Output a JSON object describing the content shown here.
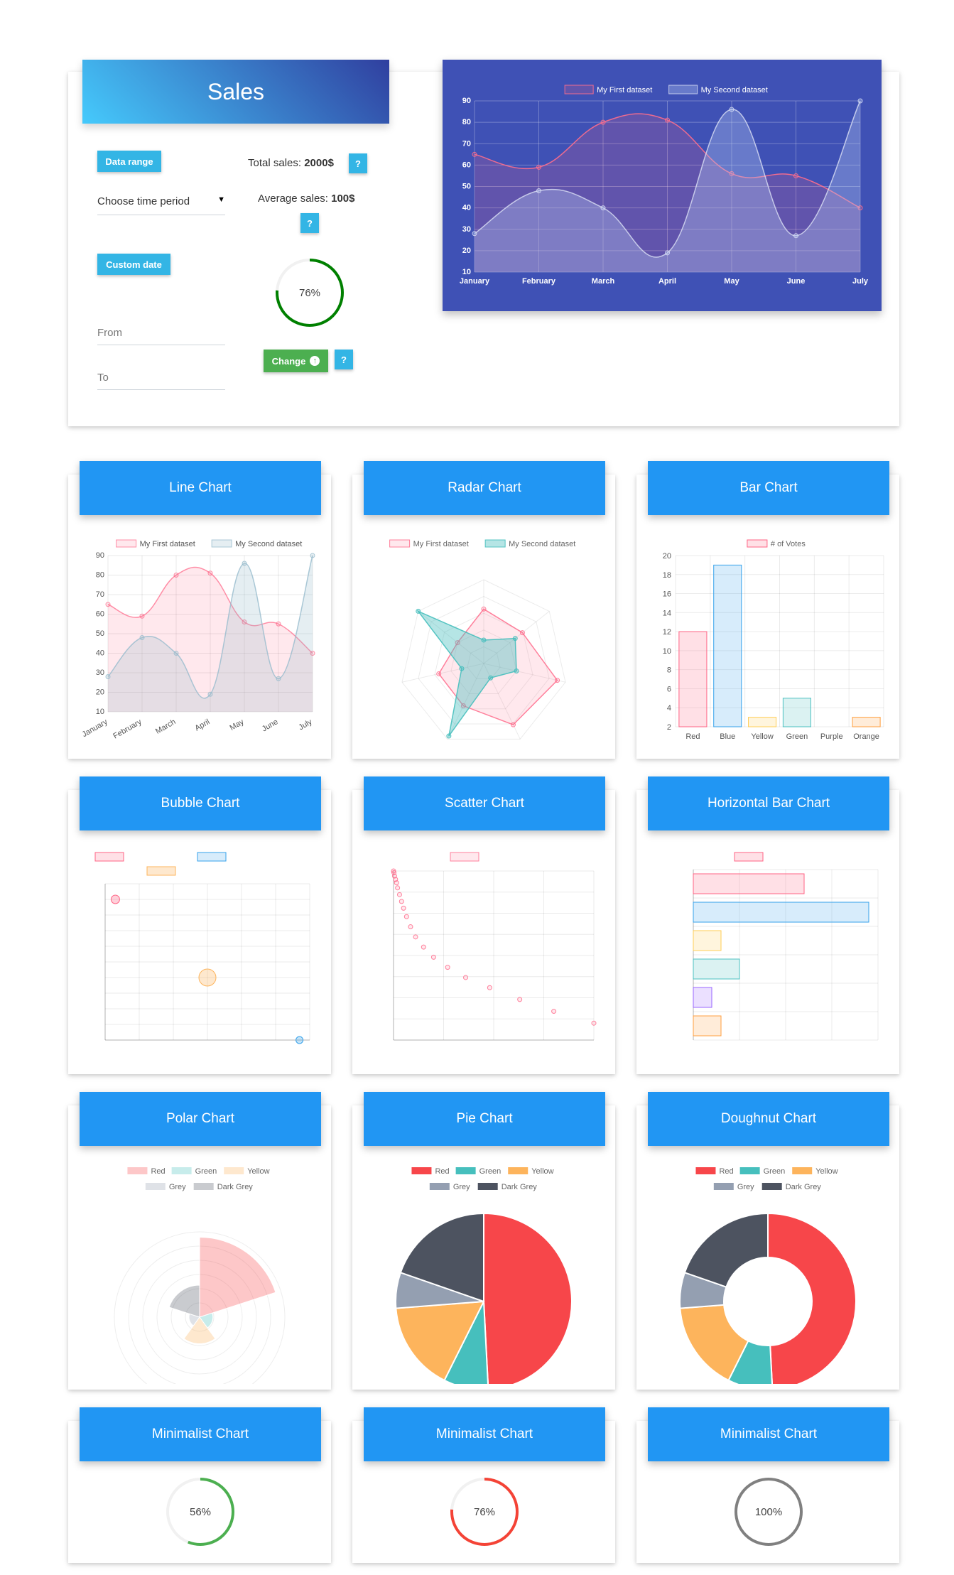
{
  "sales": {
    "title": "Sales",
    "data_range_label": "Data range",
    "period_select": "Choose time period",
    "custom_date_label": "Custom date",
    "from_placeholder": "From",
    "to_placeholder": "To",
    "total_label": "Total sales: ",
    "total_value": "2000$",
    "average_label": "Average sales: ",
    "average_value": "100$",
    "progress": 76,
    "progress_text": "76%",
    "change_label": "Change",
    "help_label": "?"
  },
  "cards": {
    "line": "Line Chart",
    "radar": "Radar Chart",
    "bar": "Bar Chart",
    "bubble": "Bubble Chart",
    "scatter": "Scatter Chart",
    "hbar": "Horizontal Bar Chart",
    "polar": "Polar Chart",
    "pie": "Pie Chart",
    "doughnut": "Doughnut Chart",
    "mini1": "Minimalist Chart",
    "mini2": "Minimalist Chart",
    "mini3": "Minimalist Chart"
  },
  "colors": {
    "primary": "#2196f3",
    "red": "#f7464a",
    "green": "#46bfbd",
    "yellow": "#fdb45c",
    "grey": "#949fb1",
    "darkgrey": "#4d5360",
    "pink": "#ff6384",
    "blue": "#36a2eb"
  },
  "chart_data": [
    {
      "id": "sales",
      "type": "area",
      "categories": [
        "January",
        "February",
        "March",
        "April",
        "May",
        "June",
        "July"
      ],
      "series": [
        {
          "name": "My First dataset",
          "values": [
            65,
            59,
            80,
            81,
            56,
            55,
            40
          ]
        },
        {
          "name": "My Second dataset",
          "values": [
            28,
            48,
            40,
            19,
            86,
            27,
            90
          ]
        }
      ],
      "ylim": [
        10,
        90
      ],
      "yticks": [
        10,
        20,
        30,
        40,
        50,
        60,
        70,
        80,
        90
      ],
      "legend": "top"
    },
    {
      "id": "line",
      "type": "area",
      "categories": [
        "January",
        "February",
        "March",
        "April",
        "May",
        "June",
        "July"
      ],
      "series": [
        {
          "name": "My First dataset",
          "values": [
            65,
            59,
            80,
            81,
            56,
            55,
            40
          ]
        },
        {
          "name": "My Second dataset",
          "values": [
            28,
            48,
            40,
            19,
            86,
            27,
            90
          ]
        }
      ],
      "ylim": [
        10,
        90
      ],
      "yticks": [
        10,
        20,
        30,
        40,
        50,
        60,
        70,
        80,
        90
      ],
      "legend": "top"
    },
    {
      "id": "radar",
      "type": "radar",
      "series": [
        {
          "name": "My First dataset",
          "values": [
            65,
            59,
            90,
            81,
            56,
            55,
            40
          ]
        },
        {
          "name": "My Second dataset",
          "values": [
            28,
            48,
            40,
            19,
            96,
            27,
            100
          ]
        }
      ],
      "max": 100,
      "legend": "top"
    },
    {
      "id": "bar",
      "type": "bar",
      "categories": [
        "Red",
        "Blue",
        "Yellow",
        "Green",
        "Purple",
        "Orange"
      ],
      "series": [
        {
          "name": "# of Votes",
          "values": [
            12,
            19,
            3,
            5,
            2,
            3
          ]
        }
      ],
      "ylim": [
        2,
        20
      ],
      "yticks": [
        2,
        4,
        6,
        8,
        10,
        12,
        14,
        16,
        18,
        20
      ],
      "legend": "top"
    },
    {
      "id": "bubble",
      "type": "scatter",
      "points": [
        {
          "x": 5,
          "y": 90,
          "r": 6,
          "color": "pink"
        },
        {
          "x": 50,
          "y": 40,
          "r": 12,
          "color": "yellow"
        },
        {
          "x": 95,
          "y": 0,
          "r": 5,
          "color": "blue"
        }
      ],
      "xlim": [
        0,
        100
      ],
      "ylim": [
        0,
        100
      ],
      "legend": "top"
    },
    {
      "id": "scatter",
      "type": "scatter",
      "points": [
        {
          "x": 0,
          "y": 100
        },
        {
          "x": 0.2,
          "y": 99
        },
        {
          "x": 0.5,
          "y": 97
        },
        {
          "x": 1,
          "y": 95
        },
        {
          "x": 1.5,
          "y": 93
        },
        {
          "x": 2,
          "y": 90
        },
        {
          "x": 3,
          "y": 86
        },
        {
          "x": 4,
          "y": 82
        },
        {
          "x": 5,
          "y": 78
        },
        {
          "x": 6.5,
          "y": 73
        },
        {
          "x": 8.5,
          "y": 67
        },
        {
          "x": 11,
          "y": 61
        },
        {
          "x": 15,
          "y": 55
        },
        {
          "x": 20,
          "y": 49
        },
        {
          "x": 27,
          "y": 43
        },
        {
          "x": 36,
          "y": 37
        },
        {
          "x": 48,
          "y": 31
        },
        {
          "x": 63,
          "y": 24
        },
        {
          "x": 80,
          "y": 17
        },
        {
          "x": 100,
          "y": 10
        }
      ],
      "xlim": [
        0,
        100
      ],
      "ylim": [
        0,
        100
      ],
      "legend": "top"
    },
    {
      "id": "hbar",
      "type": "bar",
      "orientation": "horizontal",
      "values": [
        12,
        19,
        3,
        5,
        2,
        3
      ],
      "xlim": [
        0,
        20
      ],
      "bar_colors": [
        "pink",
        "blue",
        "yellow",
        "green",
        "purple",
        "orange"
      ],
      "legend": "top"
    },
    {
      "id": "polar",
      "type": "polar",
      "labels": [
        "Red",
        "Green",
        "Yellow",
        "Grey",
        "Dark Grey"
      ],
      "values": [
        300,
        50,
        100,
        40,
        120
      ],
      "max": 320,
      "legend": "top"
    },
    {
      "id": "pie",
      "type": "pie",
      "labels": [
        "Red",
        "Green",
        "Yellow",
        "Grey",
        "Dark Grey"
      ],
      "values": [
        300,
        50,
        100,
        40,
        120
      ],
      "legend": "top"
    },
    {
      "id": "doughnut",
      "type": "pie",
      "donut": true,
      "labels": [
        "Red",
        "Green",
        "Yellow",
        "Grey",
        "Dark Grey"
      ],
      "values": [
        300,
        50,
        100,
        40,
        120
      ],
      "legend": "top"
    }
  ],
  "minimal": [
    {
      "percent": 56,
      "text": "56%",
      "color": "#4caf50"
    },
    {
      "percent": 76,
      "text": "76%",
      "color": "#f44336"
    },
    {
      "percent": 100,
      "text": "100%",
      "color": "#808080"
    }
  ]
}
